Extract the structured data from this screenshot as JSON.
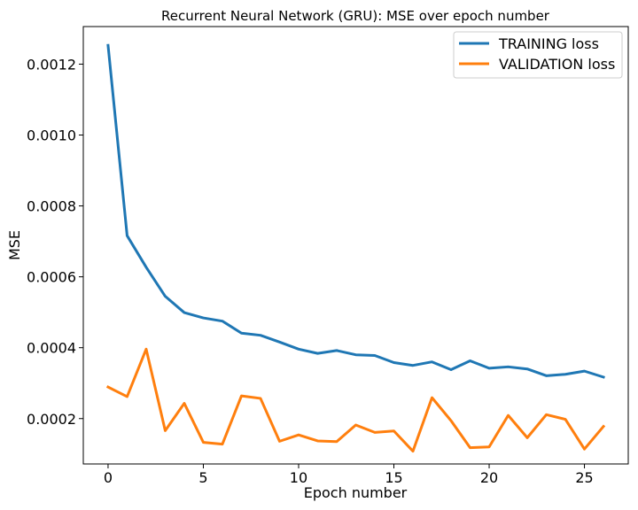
{
  "chart_data": {
    "type": "line",
    "title": "Recurrent Neural Network (GRU): MSE over epoch number",
    "xlabel": "Epoch number",
    "ylabel": "MSE",
    "xlim": [
      -1.3,
      27.3
    ],
    "ylim": [
      7.2e-05,
      0.001306
    ],
    "xticks": [
      0,
      5,
      10,
      15,
      20,
      25
    ],
    "xtick_labels": [
      "0",
      "5",
      "10",
      "15",
      "20",
      "25"
    ],
    "yticks": [
      0.0002,
      0.0004,
      0.0006,
      0.0008,
      0.001,
      0.0012
    ],
    "ytick_labels": [
      "0.0002",
      "0.0004",
      "0.0006",
      "0.0008",
      "0.0010",
      "0.0012"
    ],
    "grid": false,
    "legend_position": "top-right",
    "x": [
      0,
      1,
      2,
      3,
      4,
      5,
      6,
      7,
      8,
      9,
      10,
      11,
      12,
      13,
      14,
      15,
      16,
      17,
      18,
      19,
      20,
      21,
      22,
      23,
      24,
      25,
      26
    ],
    "series": [
      {
        "name": "TRAINING loss",
        "color": "#1f77b4",
        "values": [
          0.001253,
          0.000716,
          0.000627,
          0.000545,
          0.000499,
          0.000484,
          0.000475,
          0.000441,
          0.000435,
          0.000416,
          0.000396,
          0.000384,
          0.000392,
          0.00038,
          0.000378,
          0.000358,
          0.00035,
          0.00036,
          0.000338,
          0.000363,
          0.000342,
          0.000346,
          0.00034,
          0.000321,
          0.000325,
          0.000334,
          0.000317
        ]
      },
      {
        "name": "VALIDATION loss",
        "color": "#ff7f0e",
        "values": [
          0.000289,
          0.000262,
          0.000396,
          0.000166,
          0.000243,
          0.000133,
          0.000128,
          0.000264,
          0.000257,
          0.000136,
          0.000154,
          0.000137,
          0.000135,
          0.000182,
          0.000161,
          0.000165,
          0.000108,
          0.000259,
          0.000194,
          0.000118,
          0.00012,
          0.000209,
          0.000146,
          0.000211,
          0.000198,
          0.000114,
          0.000178
        ]
      }
    ]
  }
}
